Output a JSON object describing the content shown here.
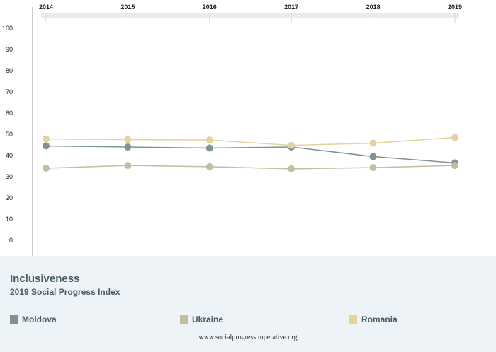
{
  "chart_data": {
    "type": "line",
    "title": "Inclusiveness",
    "subtitle": "2019 Social Progress Index",
    "x": [
      "2014",
      "2015",
      "2016",
      "2017",
      "2018",
      "2019"
    ],
    "ylim": [
      0,
      100
    ],
    "yticks": [
      0,
      10,
      20,
      30,
      40,
      50,
      60,
      70,
      80,
      90,
      100
    ],
    "series": [
      {
        "name": "Moldova",
        "color": "#7f9393",
        "values": [
          44.5,
          44.0,
          43.5,
          44.0,
          39.5,
          36.5
        ]
      },
      {
        "name": "Ukraine",
        "color": "#c2bea1",
        "values": [
          34.0,
          35.3,
          34.7,
          33.7,
          34.3,
          35.3
        ]
      },
      {
        "name": "Romania",
        "color": "#e4d29f",
        "values": [
          47.8,
          47.5,
          47.3,
          44.8,
          45.8,
          48.5
        ]
      }
    ],
    "legend_position": "bottom",
    "grid": false
  },
  "footer": {
    "source": "www.socialprogressimperative.org"
  }
}
